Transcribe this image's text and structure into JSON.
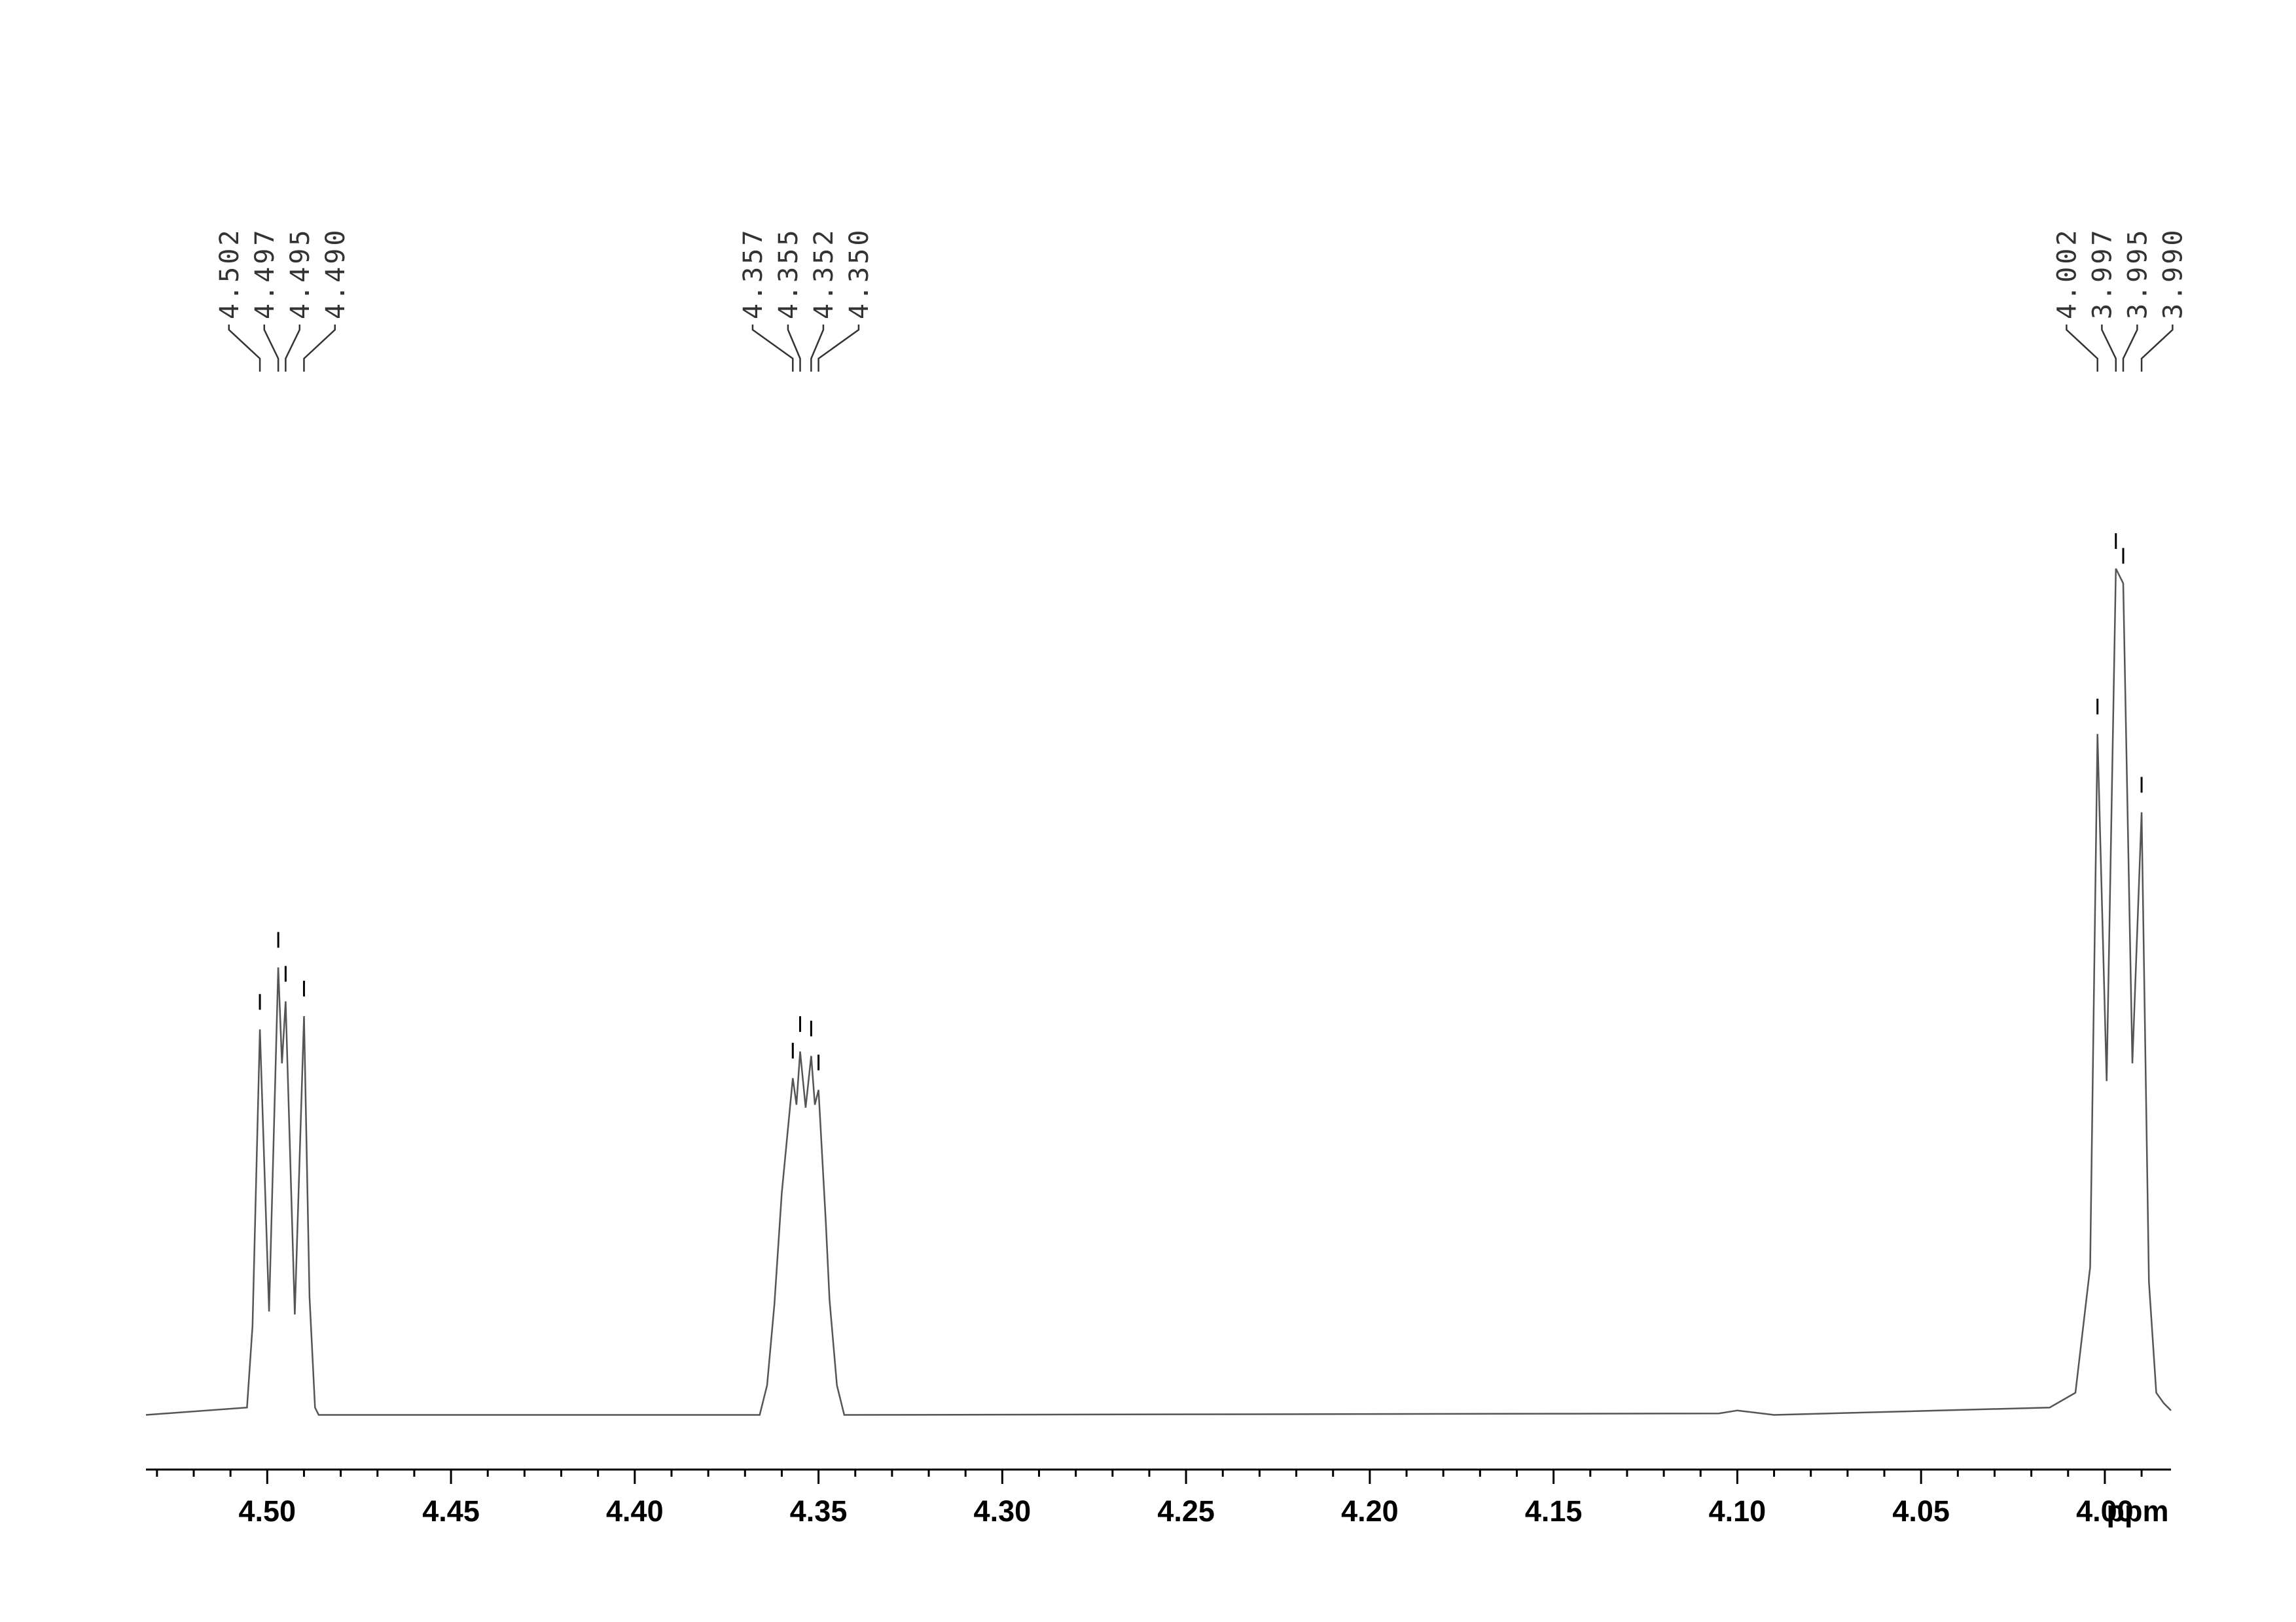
{
  "chart_data": {
    "type": "nmr",
    "xlabel": "ppm",
    "xlim": [
      4.533,
      3.982
    ],
    "ylim": [
      -37,
      600
    ],
    "xticks": [
      {
        "value": 4.5,
        "label": "4.50"
      },
      {
        "value": 4.45,
        "label": "4.45"
      },
      {
        "value": 4.4,
        "label": "4.40"
      },
      {
        "value": 4.35,
        "label": "4.35"
      },
      {
        "value": 4.3,
        "label": "4.30"
      },
      {
        "value": 4.25,
        "label": "4.25"
      },
      {
        "value": 4.2,
        "label": "4.20"
      },
      {
        "value": 4.15,
        "label": "4.15"
      },
      {
        "value": 4.1,
        "label": "4.10"
      },
      {
        "value": 4.05,
        "label": "4.05"
      },
      {
        "value": 4.0,
        "label": "4.00"
      }
    ],
    "xminorticks": [
      4.53,
      4.52,
      4.51,
      4.49,
      4.48,
      4.47,
      4.46,
      4.44,
      4.43,
      4.42,
      4.41,
      4.39,
      4.38,
      4.37,
      4.36,
      4.34,
      4.33,
      4.32,
      4.31,
      4.29,
      4.28,
      4.27,
      4.26,
      4.24,
      4.23,
      4.22,
      4.21,
      4.19,
      4.18,
      4.17,
      4.16,
      4.14,
      4.13,
      4.12,
      4.11,
      4.09,
      4.08,
      4.07,
      4.06,
      4.04,
      4.03,
      4.02,
      4.01,
      3.99
    ],
    "series": [
      {
        "color": "#555555",
        "x": [
          4.533,
          4.5055,
          4.504,
          4.502,
          4.4995,
          4.497,
          4.496,
          4.495,
          4.4925,
          4.49,
          4.4885,
          4.487,
          4.486,
          4.366,
          4.364,
          4.362,
          4.36,
          4.357,
          4.356,
          4.355,
          4.3535,
          4.352,
          4.351,
          4.35,
          4.348,
          4.347,
          4.345,
          4.343,
          4.105,
          4.1,
          4.09,
          4.015,
          4.008,
          4.004,
          4.002,
          3.9995,
          3.997,
          3.995,
          3.9925,
          3.99,
          3.988,
          3.986,
          3.984,
          3.982
        ],
        "values": [
          0,
          5,
          60,
          261,
          70,
          303,
          238,
          280,
          68,
          270,
          80,
          5,
          0,
          0,
          20,
          75,
          150,
          228,
          210,
          246,
          208,
          243,
          210,
          220,
          130,
          78,
          20,
          0,
          1,
          3,
          0,
          5,
          15,
          100,
          461,
          226,
          573,
          563,
          238,
          408,
          90,
          15,
          8,
          3
        ]
      }
    ],
    "peaks": [
      {
        "value": 4.502,
        "label": "4.502"
      },
      {
        "value": 4.497,
        "label": "4.497"
      },
      {
        "value": 4.495,
        "label": "4.495"
      },
      {
        "value": 4.49,
        "label": "4.490"
      },
      {
        "value": 4.357,
        "label": "4.357"
      },
      {
        "value": 4.355,
        "label": "4.355"
      },
      {
        "value": 4.352,
        "label": "4.352"
      },
      {
        "value": 4.35,
        "label": "4.350"
      },
      {
        "value": 4.002,
        "label": "4.002"
      },
      {
        "value": 3.997,
        "label": "3.997"
      },
      {
        "value": 3.995,
        "label": "3.995"
      },
      {
        "value": 3.99,
        "label": "3.990"
      }
    ]
  }
}
